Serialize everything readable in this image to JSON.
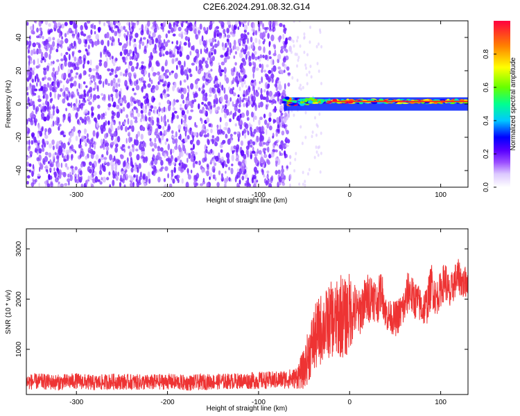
{
  "title": "C2E6.2024.291.08.32.G14",
  "chart_data": [
    {
      "type": "heatmap",
      "xlabel": "Height of straight line (km)",
      "ylabel": "Frequency (Hz)",
      "xlim": [
        -355,
        130
      ],
      "ylim": [
        -50,
        50
      ],
      "xticks": [
        -300,
        -200,
        -100,
        0,
        100
      ],
      "yticks": [
        -40,
        -20,
        0,
        20,
        40
      ],
      "noise_region_x": [
        -355,
        -65
      ],
      "signal_tone": {
        "x_start": -72,
        "x_end": 130,
        "freq_center": 1.5,
        "freq_band": [
          -4,
          4
        ],
        "peak_amplitude": 0.9
      },
      "colorbar": {
        "label": "Normalized spectral amplitude",
        "range": [
          0.0,
          1.0
        ],
        "ticks": [
          0.0,
          0.2,
          0.4,
          0.6,
          0.8
        ],
        "colors": [
          "#ffffff",
          "#dcc8ff",
          "#9a4dff",
          "#5a00ff",
          "#0000ff",
          "#00c8ff",
          "#00ff90",
          "#66ff00",
          "#ffff00",
          "#ff8000",
          "#ff0040"
        ]
      }
    },
    {
      "type": "line",
      "xlabel": "Height of straight line (km)",
      "ylabel": "SNR (10 * v/v)",
      "xlim": [
        -355,
        130
      ],
      "ylim": [
        100,
        3400
      ],
      "xticks": [
        -300,
        -200,
        -100,
        0,
        100
      ],
      "yticks": [
        1000,
        2000,
        3000
      ],
      "series": [
        {
          "color": "#ee3333",
          "x": [
            -355,
            -340,
            -320,
            -300,
            -280,
            -260,
            -240,
            -220,
            -200,
            -180,
            -160,
            -140,
            -120,
            -100,
            -80,
            -60,
            -50,
            -45,
            -40,
            -35,
            -30,
            -25,
            -20,
            -15,
            -10,
            -5,
            0,
            5,
            10,
            15,
            20,
            25,
            30,
            35,
            40,
            45,
            50,
            55,
            60,
            65,
            70,
            75,
            80,
            85,
            90,
            95,
            100,
            105,
            110,
            115,
            120,
            125,
            130
          ],
          "y": [
            350,
            360,
            340,
            370,
            330,
            360,
            350,
            340,
            360,
            330,
            350,
            360,
            370,
            380,
            390,
            420,
            600,
            900,
            1150,
            1300,
            1450,
            1500,
            1600,
            1550,
            1700,
            1600,
            1750,
            1800,
            1700,
            1900,
            2000,
            2100,
            1900,
            2200,
            1700,
            1650,
            1600,
            1700,
            1850,
            2200,
            2000,
            1950,
            1800,
            1900,
            2300,
            2000,
            2200,
            2400,
            2050,
            2350,
            2450,
            2300,
            2400
          ],
          "noise_amplitude": [
            200,
            200,
            200,
            200,
            200,
            200,
            200,
            200,
            200,
            200,
            200,
            200,
            200,
            220,
            220,
            260,
            500,
            700,
            800,
            900,
            900,
            900,
            950,
            950,
            1100,
            1000,
            1000,
            700,
            600,
            600,
            650,
            600,
            550,
            500,
            450,
            400,
            450,
            450,
            500,
            550,
            500,
            450,
            450,
            500,
            550,
            450,
            450,
            500,
            450,
            450,
            450,
            400,
            400
          ]
        }
      ]
    }
  ]
}
